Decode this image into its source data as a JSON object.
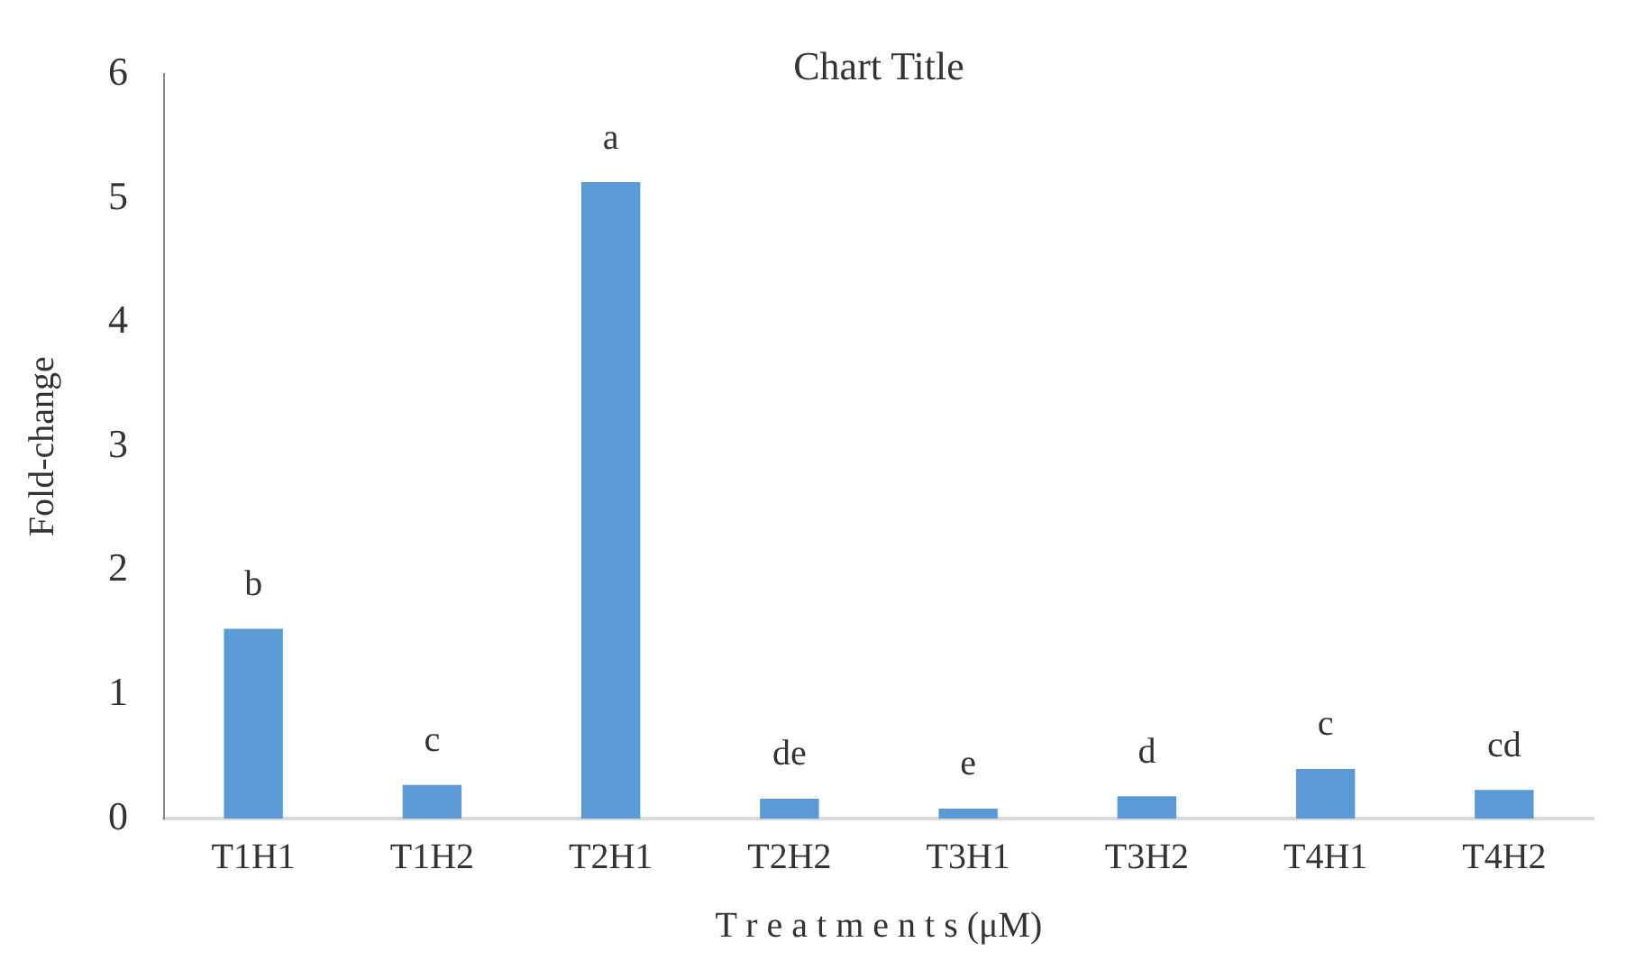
{
  "chart_data": {
    "type": "bar",
    "title": "Chart Title",
    "xlabel": "T r e a t m e n t s (μM)",
    "ylabel": "Fold-change",
    "categories": [
      "T1H1",
      "T1H2",
      "T2H1",
      "T2H2",
      "T3H1",
      "T3H2",
      "T4H1",
      "T4H2"
    ],
    "values": [
      1.53,
      0.27,
      5.13,
      0.16,
      0.08,
      0.18,
      0.4,
      0.23
    ],
    "color": "#5b9bd5",
    "ylim": [
      0,
      6
    ],
    "yticks": [
      0,
      1,
      2,
      3,
      4,
      5,
      6
    ],
    "grid": false,
    "legend": false,
    "annotations": [
      {
        "text": "b",
        "x": "T1H1",
        "y": 1.53
      },
      {
        "text": "c",
        "x": "T1H2",
        "y": 0.27
      },
      {
        "text": "a",
        "x": "T2H1",
        "y": 5.13
      },
      {
        "text": "de",
        "x": "T2H2",
        "y": 0.16
      },
      {
        "text": "e",
        "x": "T3H1",
        "y": 0.08
      },
      {
        "text": "d",
        "x": "T3H2",
        "y": 0.18
      },
      {
        "text": "c",
        "x": "T4H1",
        "y": 0.4
      },
      {
        "text": "cd",
        "x": "T4H2",
        "y": 0.23
      }
    ]
  }
}
